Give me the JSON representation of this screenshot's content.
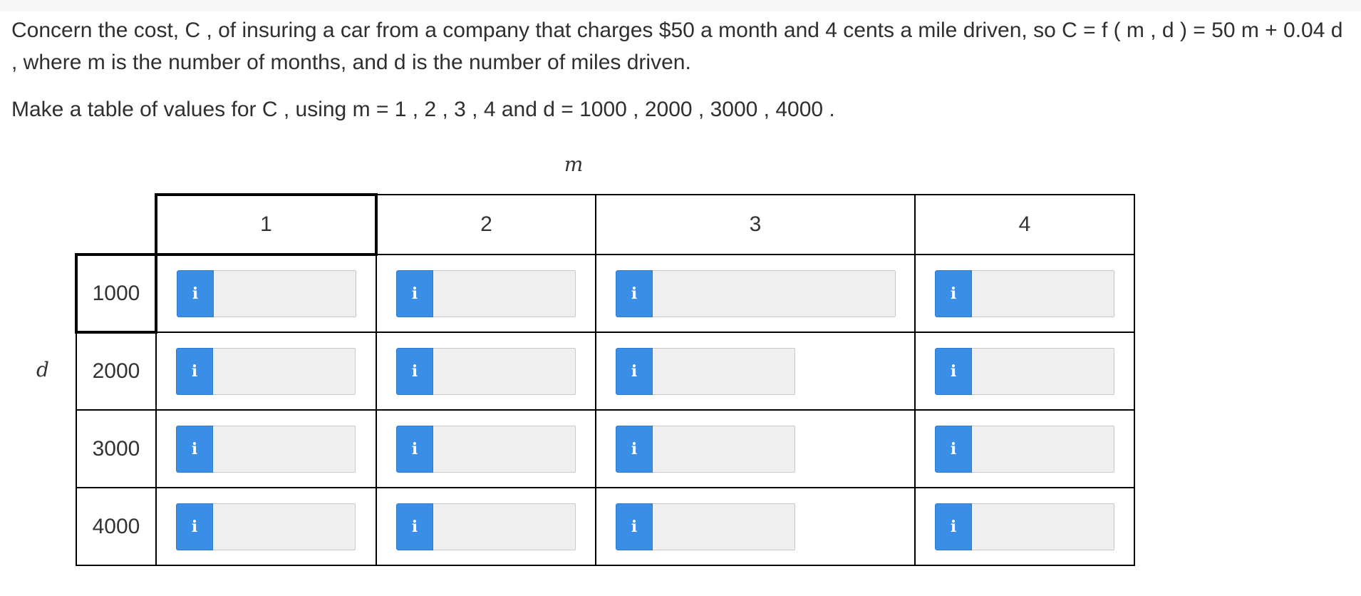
{
  "problem": {
    "statement": "Concern the cost, C , of insuring a car from a company that charges $50 a month and 4 cents a mile driven, so C = f ( m , d ) = 50 m + 0.04 d , where m is the number of months, and d is the number of miles driven.",
    "instruction": "Make a table of values for C , using m = 1 , 2 , 3 , 4 and d = 1000 , 2000 , 3000 , 4000 ."
  },
  "table": {
    "column_variable": "m",
    "row_variable": "d",
    "columns": [
      "1",
      "2",
      "3",
      "4"
    ],
    "rows": [
      "1000",
      "2000",
      "3000",
      "4000"
    ],
    "info_icon": "info-icon",
    "info_glyph": "i",
    "cell_values": [
      [
        "",
        "",
        "",
        ""
      ],
      [
        "",
        "",
        "",
        ""
      ],
      [
        "",
        "",
        "",
        ""
      ],
      [
        "",
        "",
        "",
        ""
      ]
    ]
  },
  "colors": {
    "info_button": "#3a8ee6",
    "input_background": "#efefef",
    "grid_border": "#000000"
  }
}
